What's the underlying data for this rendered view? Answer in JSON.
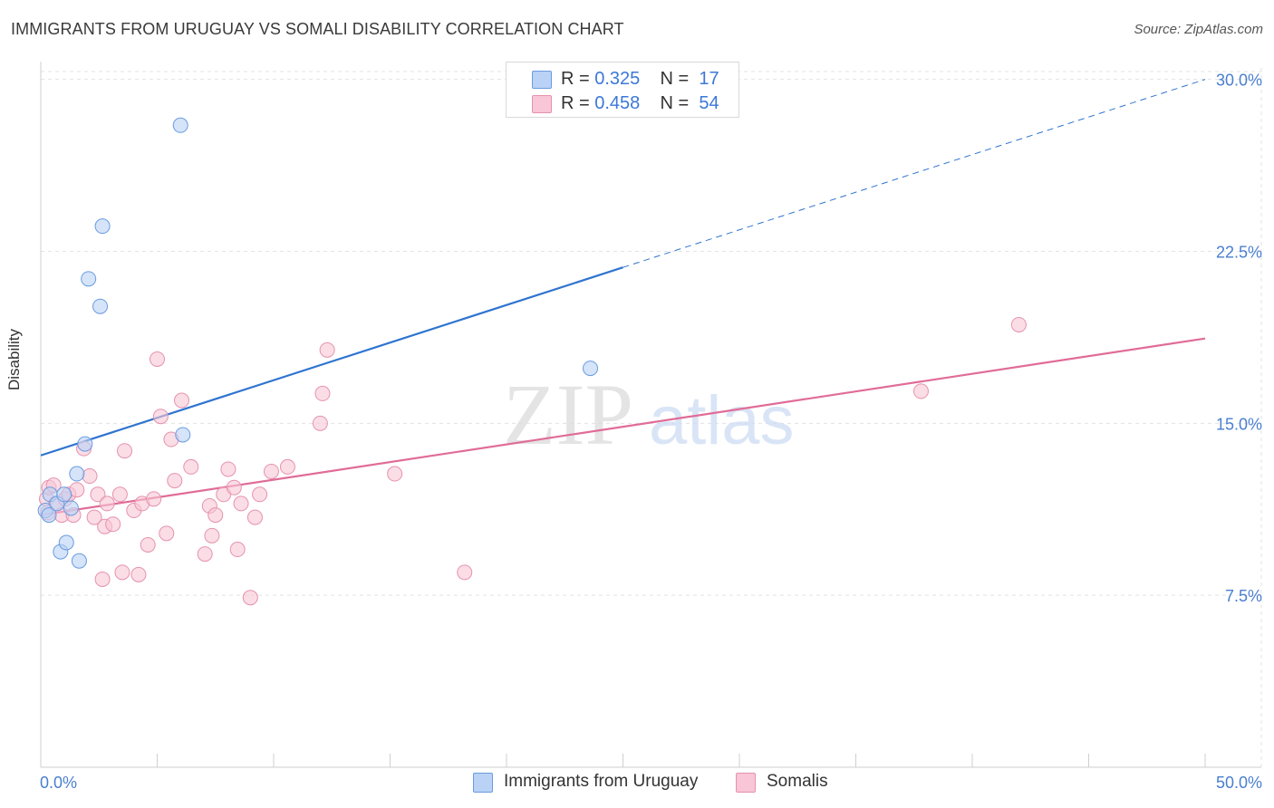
{
  "title": "IMMIGRANTS FROM URUGUAY VS SOMALI DISABILITY CORRELATION CHART",
  "source": "Source: ZipAtlas.com",
  "watermark": {
    "zip": "ZIP",
    "atlas": "atlas"
  },
  "legend": {
    "rows": [
      {
        "r_label": "R =",
        "r_value": "0.325",
        "n_label": "N =",
        "n_value": "17"
      },
      {
        "r_label": "R =",
        "r_value": "0.458",
        "n_label": "N =",
        "n_value": "54"
      }
    ]
  },
  "colors": {
    "uruguay_fill": "#b9d2f5",
    "uruguay_stroke": "#6a9be0",
    "uruguay_line": "#2f74d0",
    "somali_fill": "#f8c6d6",
    "somali_stroke": "#e592ae",
    "somali_line": "#e06c97",
    "tick_label": "#4a7fd0",
    "grid": "#e3e3e3"
  },
  "chart_data": {
    "type": "scatter",
    "ylabel": "Disability",
    "xlim": [
      0,
      50
    ],
    "ylim": [
      0,
      30.5
    ],
    "x_tick_labels": {
      "min": "0.0%",
      "max": "50.0%"
    },
    "y_ticks": [
      {
        "value": 7.5,
        "label": "7.5%"
      },
      {
        "value": 15.0,
        "label": "15.0%"
      },
      {
        "value": 22.5,
        "label": "22.5%"
      },
      {
        "value": 30.0,
        "label": "30.0%"
      }
    ],
    "grid": true,
    "series": [
      {
        "name": "Immigrants from Uruguay",
        "points": [
          [
            0.2,
            11.2
          ],
          [
            0.35,
            11.0
          ],
          [
            0.4,
            11.9
          ],
          [
            0.7,
            11.5
          ],
          [
            0.85,
            9.4
          ],
          [
            1.0,
            11.9
          ],
          [
            1.1,
            9.8
          ],
          [
            1.3,
            11.3
          ],
          [
            1.55,
            12.8
          ],
          [
            1.65,
            9.0
          ],
          [
            1.9,
            14.1
          ],
          [
            2.05,
            21.3
          ],
          [
            2.55,
            20.1
          ],
          [
            2.65,
            23.6
          ],
          [
            6.0,
            28.0
          ],
          [
            6.1,
            14.5
          ],
          [
            23.6,
            17.4
          ]
        ],
        "trend": {
          "x1": 0,
          "y1": 13.6,
          "x2": 25.0,
          "y2": 21.8,
          "dash_to_x": 50,
          "dash_to_y": 30.0
        }
      },
      {
        "name": "Somalis",
        "points": [
          [
            0.25,
            11.7
          ],
          [
            0.35,
            12.2
          ],
          [
            0.55,
            12.3
          ],
          [
            0.65,
            11.5
          ],
          [
            0.9,
            11.0
          ],
          [
            1.05,
            11.7
          ],
          [
            1.2,
            11.9
          ],
          [
            1.4,
            11.0
          ],
          [
            1.55,
            12.1
          ],
          [
            1.85,
            13.9
          ],
          [
            2.1,
            12.7
          ],
          [
            2.3,
            10.9
          ],
          [
            2.45,
            11.9
          ],
          [
            2.65,
            8.2
          ],
          [
            2.75,
            10.5
          ],
          [
            2.85,
            11.5
          ],
          [
            3.1,
            10.6
          ],
          [
            3.4,
            11.9
          ],
          [
            3.5,
            8.5
          ],
          [
            3.6,
            13.8
          ],
          [
            4.0,
            11.2
          ],
          [
            4.2,
            8.4
          ],
          [
            4.35,
            11.5
          ],
          [
            4.6,
            9.7
          ],
          [
            4.85,
            11.7
          ],
          [
            5.0,
            17.8
          ],
          [
            5.15,
            15.3
          ],
          [
            5.4,
            10.2
          ],
          [
            5.6,
            14.3
          ],
          [
            5.75,
            12.5
          ],
          [
            6.05,
            16.0
          ],
          [
            6.45,
            13.1
          ],
          [
            7.05,
            9.3
          ],
          [
            7.25,
            11.4
          ],
          [
            7.35,
            10.1
          ],
          [
            7.5,
            11.0
          ],
          [
            7.85,
            11.9
          ],
          [
            8.05,
            13.0
          ],
          [
            8.3,
            12.2
          ],
          [
            8.45,
            9.5
          ],
          [
            8.6,
            11.5
          ],
          [
            9.0,
            7.4
          ],
          [
            9.2,
            10.9
          ],
          [
            9.4,
            11.9
          ],
          [
            9.9,
            12.9
          ],
          [
            10.6,
            13.1
          ],
          [
            12.0,
            15.0
          ],
          [
            12.1,
            16.3
          ],
          [
            12.3,
            18.2
          ],
          [
            15.2,
            12.8
          ],
          [
            18.2,
            8.5
          ],
          [
            37.8,
            16.4
          ],
          [
            42.0,
            19.3
          ],
          [
            0.3,
            11.1
          ]
        ],
        "trend": {
          "x1": 0,
          "y1": 11.0,
          "x2": 50,
          "y2": 18.7
        }
      }
    ]
  },
  "bottom_legend": {
    "uruguay": "Immigrants from Uruguay",
    "somalis": "Somalis"
  }
}
